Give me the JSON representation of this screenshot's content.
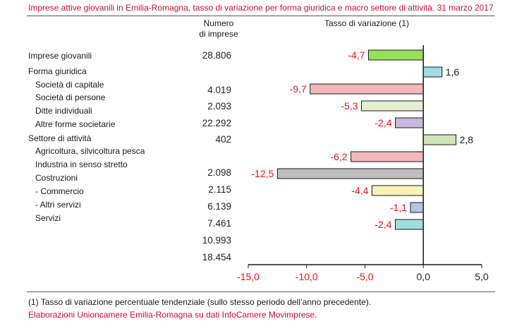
{
  "title": "Imprese attive giovanili  in Emilia-Romagna, tasso di variazione per forma giuridica e macro settore di attività. 31 marzo 2017",
  "header": {
    "numero_line1": "Numero",
    "numero_line2": "di imprese",
    "tasso": "Tasso di variazione (1)"
  },
  "labels": [
    "Imprese giovanili",
    "Forma giuridica",
    "Società di capitale",
    "Società di persone",
    "Ditte individuali",
    "Altre forme societarie",
    "Settore di attività",
    "Agricoltura, silvicoltura pesca",
    "Industria in senso stretto",
    "Costruzioni",
    "- Commercio",
    "- Altri servizi",
    "Servizi"
  ],
  "numbers": [
    "28.806",
    "4.019",
    "2.093",
    "22.292",
    "402",
    "2.098",
    "2.115",
    "6.139",
    "7.461",
    "10.993",
    "18.454"
  ],
  "footnote": "(1) Tasso di variazione percentuale tendenziale (sullo stesso periodo dell’anno precedente).",
  "source": "Elaborazioni Unioncamere Emilia-Romagna su dati InfoCamere Movimprese.",
  "chart_data": {
    "type": "bar",
    "orientation": "horizontal",
    "values": [
      -4.7,
      1.6,
      -9.7,
      -5.3,
      -2.4,
      2.8,
      -6.2,
      -12.5,
      -4.4,
      -1.1,
      -2.4
    ],
    "value_labels": [
      "-4,7",
      "1,6",
      "-9,7",
      "-5,3",
      "-2,4",
      "2,8",
      "-6,2",
      "-12,5",
      "-4,4",
      "-1,1",
      "-2,4"
    ],
    "colors": [
      "#99e05a",
      "#9fdde0",
      "#f2b8bb",
      "#e3f0d0",
      "#c8b8dd",
      "#cde5b4",
      "#f2b8bb",
      "#bfbfbf",
      "#f8f4b8",
      "#b3c4e6",
      "#9fdde0"
    ],
    "negative_label_color": "#ee1111",
    "positive_label_color": "#222222",
    "xlim": [
      -15.0,
      5.0
    ],
    "xticks": [
      -15.0,
      -10.0,
      -5.0,
      0.0,
      5.0
    ],
    "xtick_labels": [
      "-15,0",
      "-10,0",
      "-5,0",
      "0,0",
      "5,0"
    ],
    "xlabel": "",
    "ylabel": "",
    "grid": false
  }
}
